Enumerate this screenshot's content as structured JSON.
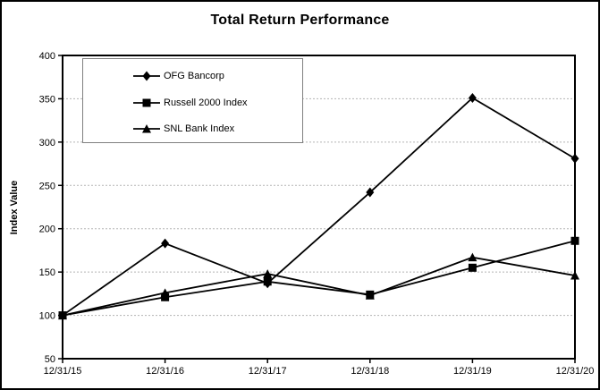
{
  "chart_data": {
    "type": "line",
    "title": "Total Return Performance",
    "xlabel": "",
    "ylabel": "Index Value",
    "categories": [
      "12/31/15",
      "12/31/16",
      "12/31/17",
      "12/31/18",
      "12/31/19",
      "12/31/20"
    ],
    "series": [
      {
        "name": "OFG Bancorp",
        "marker": "diamond",
        "values": [
          100,
          183,
          137,
          242,
          351,
          281
        ]
      },
      {
        "name": "Russell 2000 Index",
        "marker": "square",
        "values": [
          100,
          121,
          139,
          124,
          155,
          186
        ]
      },
      {
        "name": "SNL Bank Index",
        "marker": "triangle",
        "values": [
          100,
          126,
          148,
          123,
          167,
          146
        ]
      }
    ],
    "ylim": [
      50,
      400
    ],
    "yticks": [
      50,
      100,
      150,
      200,
      250,
      300,
      350,
      400
    ],
    "grid": "horizontal-dashed",
    "legend_position": "top-left-inside",
    "colors": {
      "line": "#000000",
      "grid": "#b3b3b3",
      "background": "#ffffff",
      "legend_border": "#808080",
      "text": "#000000"
    }
  }
}
